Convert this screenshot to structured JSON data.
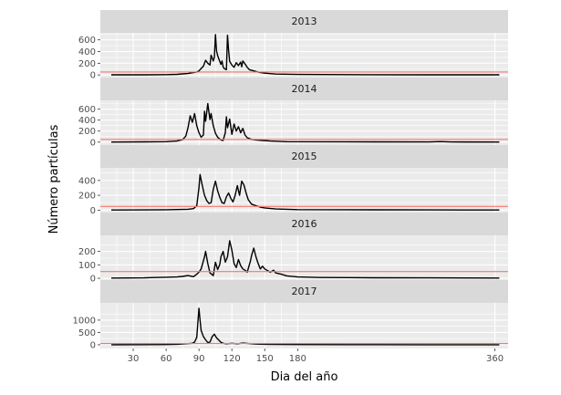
{
  "chart_data": {
    "type": "line",
    "layout": "facet-vertical",
    "xlabel": "Dia del año",
    "ylabel": "Número partículas",
    "xlim": [
      0,
      372
    ],
    "xticks": [
      30,
      60,
      90,
      120,
      150,
      180,
      360
    ],
    "reference_line": {
      "y": 50,
      "color": "#f8766d"
    },
    "grid": true,
    "panel_background": "#ebebeb",
    "strip_background": "#d9d9d9",
    "line_color": "#000000",
    "facets": [
      {
        "label": "2013",
        "ylim": [
          -60,
          720
        ],
        "yticks": [
          0,
          200,
          400,
          600
        ],
        "points": [
          [
            10,
            2
          ],
          [
            40,
            3
          ],
          [
            60,
            6
          ],
          [
            70,
            10
          ],
          [
            75,
            18
          ],
          [
            80,
            25
          ],
          [
            85,
            40
          ],
          [
            88,
            50
          ],
          [
            90,
            70
          ],
          [
            92,
            110
          ],
          [
            94,
            150
          ],
          [
            96,
            250
          ],
          [
            98,
            200
          ],
          [
            100,
            170
          ],
          [
            101,
            340
          ],
          [
            103,
            240
          ],
          [
            104,
            300
          ],
          [
            105,
            690
          ],
          [
            106,
            410
          ],
          [
            107,
            330
          ],
          [
            108,
            280
          ],
          [
            110,
            180
          ],
          [
            111,
            240
          ],
          [
            112,
            140
          ],
          [
            113,
            110
          ],
          [
            115,
            90
          ],
          [
            116,
            680
          ],
          [
            117,
            420
          ],
          [
            118,
            230
          ],
          [
            120,
            170
          ],
          [
            122,
            130
          ],
          [
            124,
            210
          ],
          [
            126,
            160
          ],
          [
            128,
            220
          ],
          [
            129,
            140
          ],
          [
            130,
            240
          ],
          [
            132,
            190
          ],
          [
            134,
            130
          ],
          [
            136,
            90
          ],
          [
            140,
            70
          ],
          [
            145,
            45
          ],
          [
            150,
            30
          ],
          [
            160,
            15
          ],
          [
            180,
            8
          ],
          [
            250,
            4
          ],
          [
            300,
            3
          ],
          [
            364,
            2
          ]
        ]
      },
      {
        "label": "2014",
        "ylim": [
          -70,
          760
        ],
        "yticks": [
          0,
          200,
          400,
          600
        ],
        "points": [
          [
            10,
            2
          ],
          [
            40,
            4
          ],
          [
            60,
            8
          ],
          [
            70,
            20
          ],
          [
            75,
            45
          ],
          [
            78,
            110
          ],
          [
            80,
            260
          ],
          [
            82,
            480
          ],
          [
            84,
            360
          ],
          [
            86,
            520
          ],
          [
            88,
            300
          ],
          [
            90,
            170
          ],
          [
            92,
            90
          ],
          [
            94,
            130
          ],
          [
            95,
            560
          ],
          [
            96,
            380
          ],
          [
            98,
            700
          ],
          [
            100,
            410
          ],
          [
            101,
            520
          ],
          [
            103,
            300
          ],
          [
            105,
            160
          ],
          [
            107,
            90
          ],
          [
            110,
            40
          ],
          [
            112,
            30
          ],
          [
            114,
            170
          ],
          [
            115,
            460
          ],
          [
            116,
            260
          ],
          [
            118,
            420
          ],
          [
            120,
            140
          ],
          [
            122,
            330
          ],
          [
            124,
            200
          ],
          [
            126,
            280
          ],
          [
            128,
            170
          ],
          [
            130,
            250
          ],
          [
            132,
            130
          ],
          [
            134,
            80
          ],
          [
            138,
            50
          ],
          [
            142,
            40
          ],
          [
            148,
            30
          ],
          [
            155,
            20
          ],
          [
            170,
            8
          ],
          [
            250,
            4
          ],
          [
            300,
            3
          ],
          [
            310,
            10
          ],
          [
            320,
            3
          ],
          [
            364,
            2
          ]
        ]
      },
      {
        "label": "2015",
        "ylim": [
          -45,
          570
        ],
        "yticks": [
          0,
          200,
          400
        ],
        "points": [
          [
            10,
            2
          ],
          [
            40,
            3
          ],
          [
            60,
            5
          ],
          [
            70,
            8
          ],
          [
            80,
            12
          ],
          [
            85,
            20
          ],
          [
            88,
            60
          ],
          [
            90,
            300
          ],
          [
            91,
            480
          ],
          [
            93,
            330
          ],
          [
            95,
            200
          ],
          [
            97,
            130
          ],
          [
            99,
            90
          ],
          [
            101,
            100
          ],
          [
            103,
            280
          ],
          [
            105,
            390
          ],
          [
            107,
            260
          ],
          [
            109,
            170
          ],
          [
            111,
            100
          ],
          [
            113,
            90
          ],
          [
            115,
            180
          ],
          [
            117,
            230
          ],
          [
            119,
            160
          ],
          [
            121,
            110
          ],
          [
            123,
            200
          ],
          [
            125,
            330
          ],
          [
            127,
            200
          ],
          [
            129,
            390
          ],
          [
            131,
            340
          ],
          [
            133,
            230
          ],
          [
            135,
            140
          ],
          [
            138,
            80
          ],
          [
            142,
            60
          ],
          [
            146,
            40
          ],
          [
            150,
            30
          ],
          [
            160,
            15
          ],
          [
            180,
            7
          ],
          [
            250,
            4
          ],
          [
            300,
            3
          ],
          [
            364,
            2
          ]
        ]
      },
      {
        "label": "2016",
        "ylim": [
          -20,
          320
        ],
        "yticks": [
          0,
          100,
          200
        ],
        "points": [
          [
            10,
            2
          ],
          [
            40,
            3
          ],
          [
            50,
            6
          ],
          [
            60,
            8
          ],
          [
            70,
            10
          ],
          [
            75,
            14
          ],
          [
            80,
            20
          ],
          [
            85,
            12
          ],
          [
            88,
            30
          ],
          [
            90,
            45
          ],
          [
            92,
            70
          ],
          [
            95,
            160
          ],
          [
            96,
            200
          ],
          [
            98,
            110
          ],
          [
            100,
            40
          ],
          [
            103,
            20
          ],
          [
            105,
            120
          ],
          [
            107,
            65
          ],
          [
            109,
            105
          ],
          [
            110,
            160
          ],
          [
            112,
            200
          ],
          [
            114,
            120
          ],
          [
            116,
            160
          ],
          [
            118,
            280
          ],
          [
            120,
            210
          ],
          [
            122,
            110
          ],
          [
            124,
            80
          ],
          [
            126,
            140
          ],
          [
            128,
            95
          ],
          [
            130,
            70
          ],
          [
            132,
            60
          ],
          [
            134,
            45
          ],
          [
            137,
            130
          ],
          [
            138,
            170
          ],
          [
            140,
            225
          ],
          [
            142,
            160
          ],
          [
            144,
            110
          ],
          [
            146,
            70
          ],
          [
            148,
            90
          ],
          [
            150,
            70
          ],
          [
            152,
            60
          ],
          [
            155,
            45
          ],
          [
            158,
            60
          ],
          [
            160,
            40
          ],
          [
            165,
            30
          ],
          [
            170,
            18
          ],
          [
            180,
            10
          ],
          [
            200,
            6
          ],
          [
            250,
            4
          ],
          [
            300,
            3
          ],
          [
            364,
            2
          ]
        ]
      },
      {
        "label": "2017",
        "ylim": [
          -150,
          1700
        ],
        "yticks": [
          0,
          500,
          1000
        ],
        "points": [
          [
            10,
            2
          ],
          [
            40,
            5
          ],
          [
            60,
            10
          ],
          [
            70,
            20
          ],
          [
            75,
            30
          ],
          [
            80,
            45
          ],
          [
            84,
            60
          ],
          [
            86,
            110
          ],
          [
            88,
            300
          ],
          [
            90,
            1480
          ],
          [
            91,
            1000
          ],
          [
            92,
            580
          ],
          [
            94,
            330
          ],
          [
            96,
            200
          ],
          [
            98,
            90
          ],
          [
            100,
            110
          ],
          [
            102,
            330
          ],
          [
            104,
            430
          ],
          [
            106,
            280
          ],
          [
            108,
            190
          ],
          [
            110,
            100
          ],
          [
            112,
            60
          ],
          [
            115,
            40
          ],
          [
            120,
            60
          ],
          [
            125,
            40
          ],
          [
            130,
            70
          ],
          [
            135,
            50
          ],
          [
            140,
            35
          ],
          [
            145,
            25
          ],
          [
            150,
            20
          ],
          [
            160,
            14
          ],
          [
            180,
            8
          ],
          [
            250,
            4
          ],
          [
            300,
            3
          ],
          [
            364,
            2
          ]
        ]
      }
    ]
  }
}
